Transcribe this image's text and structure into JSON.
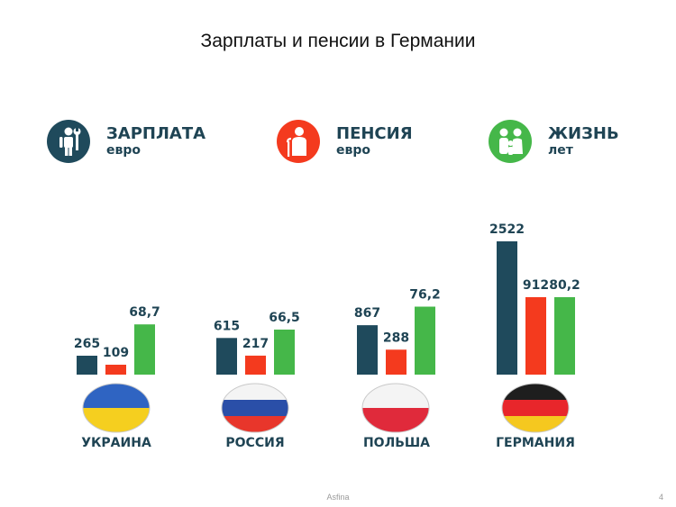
{
  "slide": {
    "title": "Зарплаты и пенсии в Германии",
    "footer_center": "Asfina",
    "page_number": "4"
  },
  "legend": [
    {
      "label": "ЗАРПЛАТА",
      "unit": "евро",
      "color": "#1f4a5c",
      "icon": "worker-wrench-icon"
    },
    {
      "label": "ПЕНСИЯ",
      "unit": "евро",
      "color": "#f43a1e",
      "icon": "elderly-person-cane-icon"
    },
    {
      "label": "ЖИЗНЬ",
      "unit": "лет",
      "color": "#45b749",
      "icon": "family-icon"
    }
  ],
  "chart_data": {
    "type": "bar",
    "title": "Зарплаты и пенсии в Германии",
    "categories": [
      "УКРАИНА",
      "РОССИЯ",
      "ПОЛЬША",
      "ГЕРМАНИЯ"
    ],
    "series": [
      {
        "name": "ЗАРПЛАТА",
        "unit": "евро",
        "color": "#1f4a5c",
        "values": [
          265,
          615,
          867,
          2522
        ],
        "labels": [
          "265",
          "615",
          "867",
          "2522"
        ]
      },
      {
        "name": "ПЕНСИЯ",
        "unit": "евро",
        "color": "#f43a1e",
        "values": [
          109,
          217,
          288,
          912
        ],
        "labels": [
          "109",
          "217",
          "288",
          "912"
        ]
      },
      {
        "name": "ЖИЗНЬ",
        "unit": "лет",
        "color": "#45b749",
        "values": [
          68.7,
          66.5,
          76.2,
          80.2
        ],
        "labels": [
          "68,7",
          "66,5",
          "76,2",
          "80,2"
        ]
      }
    ],
    "flag_icons": [
      "ukraine-flag-icon",
      "russia-flag-icon",
      "poland-flag-icon",
      "germany-flag-icon"
    ]
  }
}
